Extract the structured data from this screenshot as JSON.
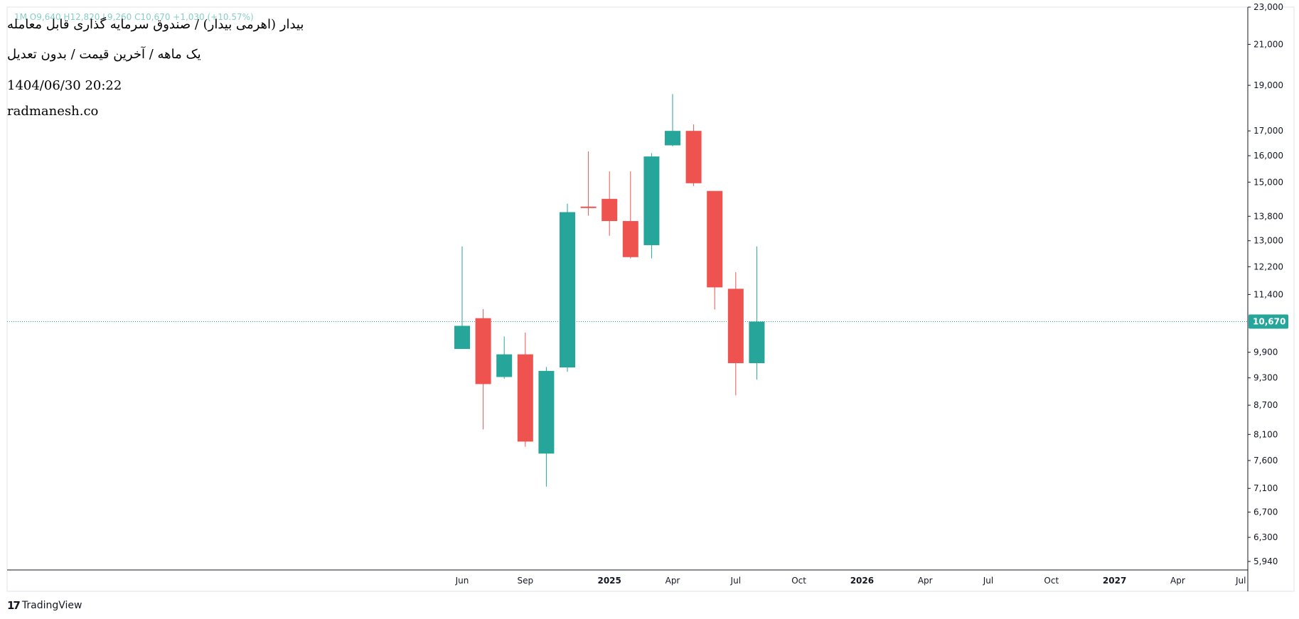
{
  "header": {
    "title_fa": "بیدار (اهرمی بیدار) / صندوق سرمایه گذاری قابل معامله",
    "subtitle_fa": "یک ماهه / آخرین قیمت / بدون تعدیل",
    "datetime": "1404/06/30 20:22",
    "site": "radmanesh.co",
    "faded_overlay": "1M O9,640 H12,820 L9,260 C10,670 +1,030 (+10.57%)"
  },
  "footer": {
    "brand": "TradingView"
  },
  "colors": {
    "up": "#26a69a",
    "down": "#ef5350",
    "axis": "#131722",
    "last_price_line": "#26a69a"
  },
  "chart_data": {
    "type": "candlestick",
    "scale": "log",
    "ylim": [
      5700,
      23500
    ],
    "last_price": 10670,
    "last_price_label": "10,670",
    "y_ticks": [
      {
        "value": 5940,
        "label": "5,940"
      },
      {
        "value": 6300,
        "label": "6,300"
      },
      {
        "value": 6700,
        "label": "6,700"
      },
      {
        "value": 7100,
        "label": "7,100"
      },
      {
        "value": 7600,
        "label": "7,600"
      },
      {
        "value": 8100,
        "label": "8,100"
      },
      {
        "value": 8700,
        "label": "8,700"
      },
      {
        "value": 9300,
        "label": "9,300"
      },
      {
        "value": 9900,
        "label": "9,900"
      },
      {
        "value": 11400,
        "label": "11,400"
      },
      {
        "value": 12200,
        "label": "12,200"
      },
      {
        "value": 13000,
        "label": "13,000"
      },
      {
        "value": 13800,
        "label": "13,800"
      },
      {
        "value": 15000,
        "label": "15,000"
      },
      {
        "value": 16000,
        "label": "16,000"
      },
      {
        "value": 17000,
        "label": "17,000"
      },
      {
        "value": 19000,
        "label": "19,000"
      },
      {
        "value": 21000,
        "label": "21,000"
      },
      {
        "value": 23000,
        "label": "23,000"
      }
    ],
    "x_ticks": [
      {
        "index": 0,
        "label": "Jun",
        "bold": false
      },
      {
        "index": 3,
        "label": "Sep",
        "bold": false
      },
      {
        "index": 7,
        "label": "2025",
        "bold": true
      },
      {
        "index": 10,
        "label": "Apr",
        "bold": false
      },
      {
        "index": 13,
        "label": "Jul",
        "bold": false
      },
      {
        "index": 16,
        "label": "Oct",
        "bold": false
      },
      {
        "index": 19,
        "label": "2026",
        "bold": true
      },
      {
        "index": 22,
        "label": "Apr",
        "bold": false
      },
      {
        "index": 25,
        "label": "Jul",
        "bold": false
      },
      {
        "index": 28,
        "label": "Oct",
        "bold": false
      },
      {
        "index": 31,
        "label": "2027",
        "bold": true
      },
      {
        "index": 34,
        "label": "Apr",
        "bold": false
      },
      {
        "index": 37,
        "label": "Jul",
        "bold": false
      }
    ],
    "candles": [
      {
        "index": 0,
        "open": 9980,
        "high": 12820,
        "low": 9980,
        "close": 10560
      },
      {
        "index": 1,
        "open": 10760,
        "high": 11000,
        "low": 8200,
        "close": 9160
      },
      {
        "index": 2,
        "open": 9320,
        "high": 10290,
        "low": 9280,
        "close": 9850
      },
      {
        "index": 3,
        "open": 9850,
        "high": 10390,
        "low": 7860,
        "close": 7960
      },
      {
        "index": 4,
        "open": 7730,
        "high": 9550,
        "low": 7130,
        "close": 9460
      },
      {
        "index": 5,
        "open": 9540,
        "high": 14230,
        "low": 9440,
        "close": 13940
      },
      {
        "index": 6,
        "open": 14130,
        "high": 16170,
        "low": 13820,
        "close": 14080
      },
      {
        "index": 7,
        "open": 14400,
        "high": 15400,
        "low": 13160,
        "close": 13640
      },
      {
        "index": 8,
        "open": 13640,
        "high": 15400,
        "low": 12450,
        "close": 12490
      },
      {
        "index": 9,
        "open": 12860,
        "high": 16100,
        "low": 12450,
        "close": 15970
      },
      {
        "index": 10,
        "open": 16410,
        "high": 18600,
        "low": 16370,
        "close": 17000
      },
      {
        "index": 11,
        "open": 17000,
        "high": 17270,
        "low": 14860,
        "close": 14960
      },
      {
        "index": 12,
        "open": 14680,
        "high": 14680,
        "low": 10990,
        "close": 11600
      },
      {
        "index": 13,
        "open": 11560,
        "high": 12040,
        "low": 8910,
        "close": 9640
      },
      {
        "index": 14,
        "open": 9640,
        "high": 12820,
        "low": 9260,
        "close": 10670
      }
    ]
  }
}
